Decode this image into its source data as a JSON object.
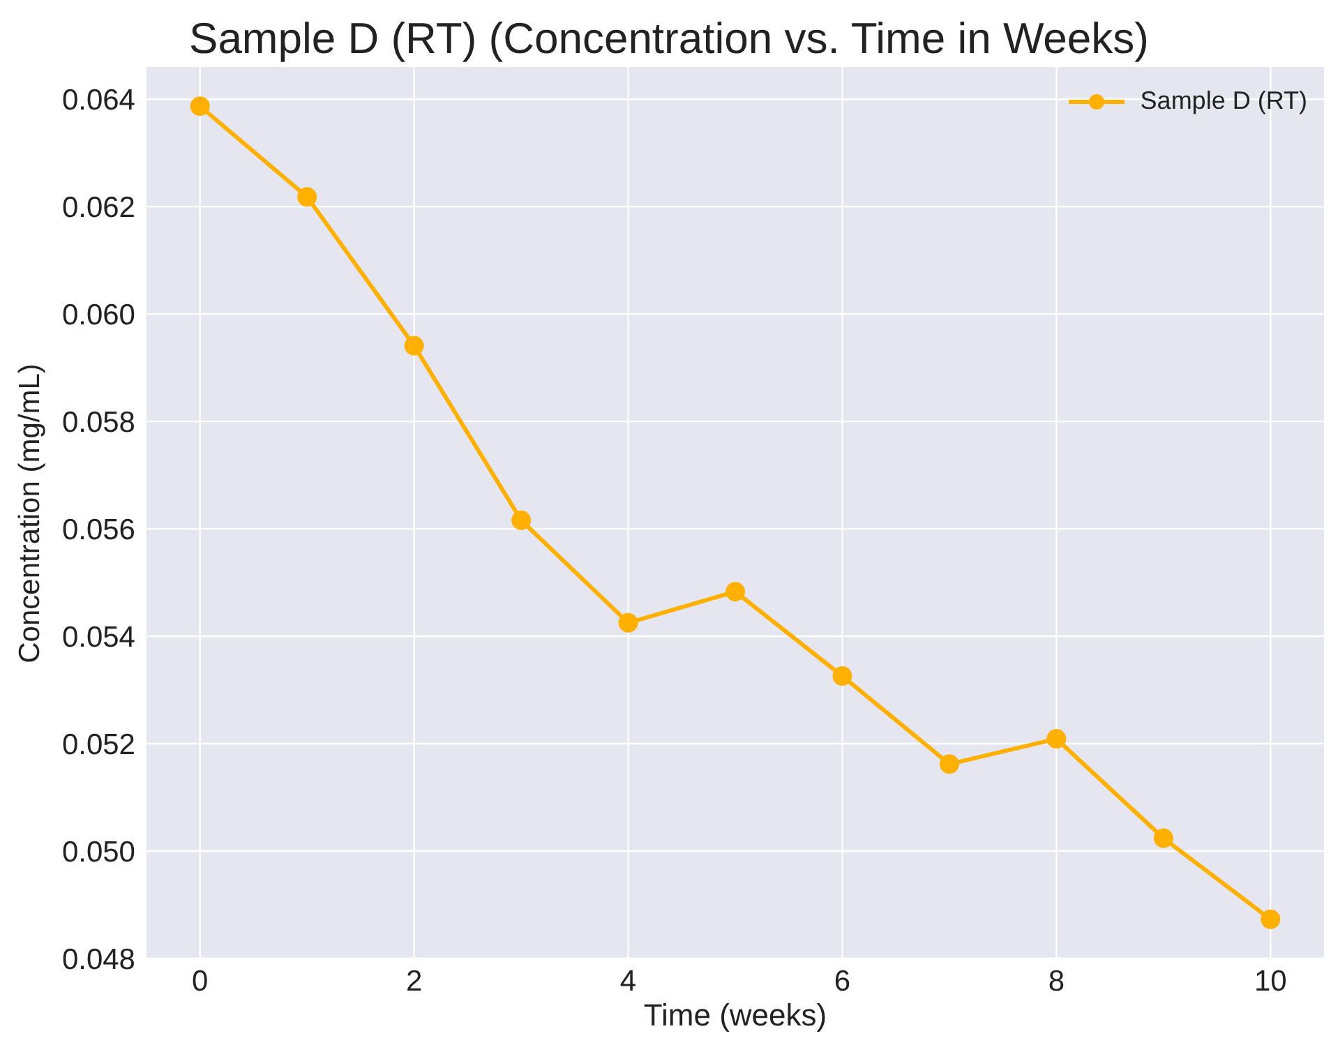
{
  "chart_data": {
    "type": "line",
    "title": "Sample D (RT) (Concentration vs. Time in Weeks)",
    "xlabel": "Time (weeks)",
    "ylabel": "Concentration (mg/mL)",
    "x": [
      0,
      1,
      2,
      3,
      4,
      5,
      6,
      7,
      8,
      9,
      10
    ],
    "series": [
      {
        "name": "Sample D (RT)",
        "color": "#ffb000",
        "values": [
          0.06387,
          0.06218,
          0.05941,
          0.05616,
          0.05425,
          0.05483,
          0.05326,
          0.05162,
          0.05209,
          0.05024,
          0.04873
        ]
      }
    ],
    "xlim": [
      -0.5,
      10.5
    ],
    "xticks": [
      0,
      2,
      4,
      6,
      8,
      10
    ],
    "ylim": [
      0.048,
      0.0646
    ],
    "yticks": [
      {
        "value": 0.048,
        "label": "0.048"
      },
      {
        "value": 0.05,
        "label": "0.050"
      },
      {
        "value": 0.052,
        "label": "0.052"
      },
      {
        "value": 0.054,
        "label": "0.054"
      },
      {
        "value": 0.056,
        "label": "0.056"
      },
      {
        "value": 0.058,
        "label": "0.058"
      },
      {
        "value": 0.06,
        "label": "0.060"
      },
      {
        "value": 0.062,
        "label": "0.062"
      },
      {
        "value": 0.064,
        "label": "0.064"
      }
    ],
    "grid": true,
    "legend": "top right",
    "marker": "circle",
    "line_style": "solid"
  }
}
